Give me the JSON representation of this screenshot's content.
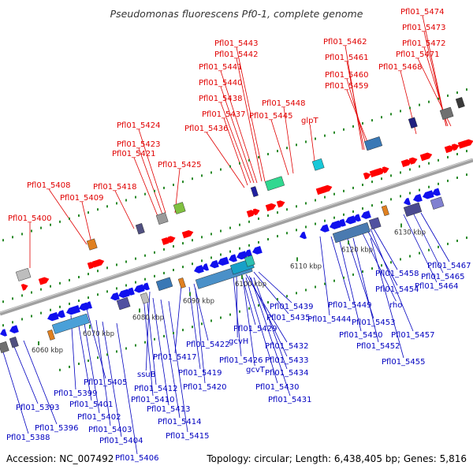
{
  "title": "Pseudomonas fluorescens Pf0-1, complete genome",
  "footer": {
    "accession": "Accession: NC_007492",
    "topology": "Topology: circular; Length: 6,438,405 bp; Genes: 5,816"
  },
  "colors": {
    "upper_label": "#e00000",
    "lower_label": "#0000c0",
    "forward_gene": "#ff0000",
    "reverse_gene": "#1010ee",
    "backbone": "#a0a0a0",
    "tick": "#2a8a2a"
  },
  "kbp_labels": [
    "6060 kbp",
    "6070 kbp",
    "6080 kbp",
    "6090 kbp",
    "6100 kbp",
    "6110 kbp",
    "6120 kbp",
    "6130 kbp"
  ],
  "upper_labels": [
    "Pfl01_5474",
    "Pfl01_5473",
    "Pfl01_5472",
    "Pfl01_5471",
    "Pfl01_5468",
    "Pfl01_5462",
    "Pfl01_5461",
    "Pfl01_5460",
    "Pfl01_5459",
    "Pfl01_5443",
    "Pfl01_5442",
    "Pfl01_5441",
    "Pfl01_5440",
    "Pfl01_5438",
    "Pfl01_5437",
    "Pfl01_5436",
    "Pfl01_5448",
    "Pfl01_5445",
    "glpT",
    "Pfl01_5424",
    "Pfl01_5423",
    "Pfl01_5421",
    "Pfl01_5425",
    "Pfl01_5408",
    "Pfl01_5409",
    "Pfl01_5418",
    "Pfl01_5400"
  ],
  "lower_labels": [
    "Pfl01_5467",
    "Pfl01_5465",
    "Pfl01_5464",
    "Pfl01_5458",
    "Pfl01_5454",
    "rho",
    "Pfl01_5457",
    "Pfl01_5449",
    "Pfl01_5444",
    "Pfl01_5453",
    "Pfl01_5450",
    "Pfl01_5452",
    "Pfl01_5455",
    "Pfl01_5439",
    "Pfl01_5435",
    "Pfl01_5429",
    "Pfl01_5432",
    "gcvH",
    "Pfl01_5426",
    "Pfl01_5433",
    "gcvT",
    "Pfl01_5434",
    "Pfl01_5430",
    "Pfl01_5431",
    "Pfl01_5422",
    "Pfl01_5417",
    "Pfl01_5419",
    "Pfl01_5420",
    "ssuB",
    "Pfl01_5412",
    "Pfl01_5410",
    "Pfl01_5413",
    "Pfl01_5414",
    "Pfl01_5415",
    "Pfl01_5405",
    "Pfl01_5399",
    "Pfl01_5401",
    "Pfl01_5402",
    "Pfl01_5403",
    "Pfl01_5404",
    "Pfl01_5406",
    "Pfl01_5393",
    "Pfl01_5396",
    "Pfl01_5388"
  ]
}
